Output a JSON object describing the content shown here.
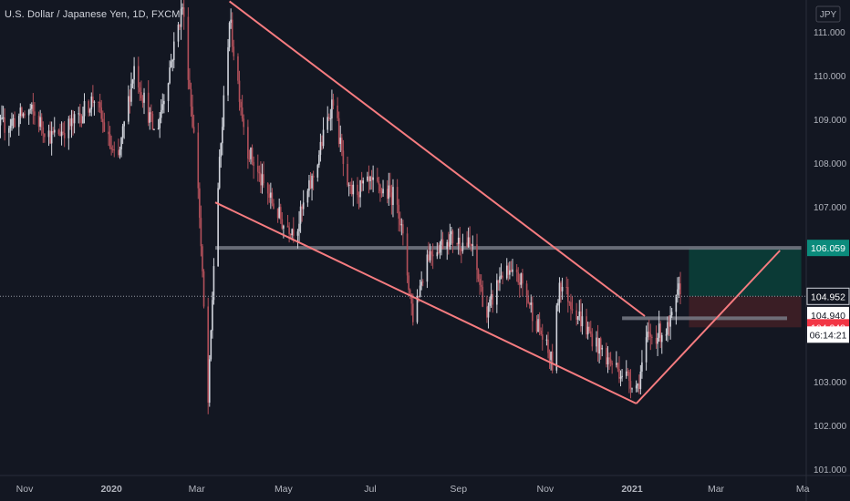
{
  "title": "U.S. Dollar / Japanese Yen, 1D, FXCM",
  "chart_data": {
    "type": "candlestick",
    "symbol": "USDJPY",
    "interval": "1D",
    "source": "FXCM",
    "currency_label": "JPY",
    "y_axis": {
      "ticks": [
        101.0,
        102.0,
        103.0,
        104.0,
        105.0,
        106.0,
        107.0,
        108.0,
        109.0,
        110.0,
        111.0
      ],
      "tick_labels": [
        "101.000",
        "102.000",
        "103.000",
        "104.000",
        "105.000",
        "106.000",
        "107.000",
        "108.000",
        "109.000",
        "110.000",
        "111.000"
      ]
    },
    "x_axis": {
      "tick_labels": [
        "Nov",
        "2020",
        "Mar",
        "May",
        "Jul",
        "Sep",
        "Nov",
        "2021",
        "Mar",
        "Ma"
      ],
      "tick_dates": [
        "2019-11-01",
        "2020-01-01",
        "2020-03-01",
        "2020-05-01",
        "2020-07-01",
        "2020-09-01",
        "2020-11-01",
        "2021-01-01",
        "2021-03-01",
        "2021-05-01"
      ]
    },
    "price_labels": [
      {
        "value": 106.059,
        "label": "106.059",
        "color": "#0b8b7c"
      },
      {
        "value": 104.952,
        "label": "104.952",
        "color": "#131722"
      },
      {
        "value": 104.94,
        "label": "104.940",
        "color": "#ffffff"
      },
      {
        "value": 104.243,
        "label": "104.243",
        "color": "#f23645"
      }
    ],
    "countdown": "06:14:21",
    "candle_anchors": [
      [
        "2019-10-01",
        108.6
      ],
      [
        "2019-10-20",
        108.9
      ],
      [
        "2019-11-05",
        109.2
      ],
      [
        "2019-11-20",
        108.6
      ],
      [
        "2019-12-05",
        108.9
      ],
      [
        "2019-12-20",
        109.5
      ],
      [
        "2020-01-05",
        107.9
      ],
      [
        "2020-01-17",
        110.2
      ],
      [
        "2020-02-01",
        108.6
      ],
      [
        "2020-02-20",
        111.6
      ],
      [
        "2020-03-02",
        107.5
      ],
      [
        "2020-03-09",
        102.5
      ],
      [
        "2020-03-14",
        106.5
      ],
      [
        "2020-03-24",
        111.3
      ],
      [
        "2020-04-05",
        108.4
      ],
      [
        "2020-04-15",
        107.6
      ],
      [
        "2020-05-01",
        106.6
      ],
      [
        "2020-05-10",
        106.5
      ],
      [
        "2020-05-22",
        107.7
      ],
      [
        "2020-06-05",
        109.5
      ],
      [
        "2020-06-15",
        107.3
      ],
      [
        "2020-07-01",
        107.5
      ],
      [
        "2020-07-20",
        107.2
      ],
      [
        "2020-07-31",
        104.5
      ],
      [
        "2020-08-10",
        105.9
      ],
      [
        "2020-08-25",
        106.3
      ],
      [
        "2020-09-10",
        106.1
      ],
      [
        "2020-09-21",
        104.5
      ],
      [
        "2020-10-01",
        105.5
      ],
      [
        "2020-10-15",
        105.3
      ],
      [
        "2020-11-06",
        103.4
      ],
      [
        "2020-11-11",
        105.3
      ],
      [
        "2020-11-30",
        104.2
      ],
      [
        "2020-12-15",
        103.5
      ],
      [
        "2021-01-05",
        102.9
      ],
      [
        "2021-01-12",
        104.0
      ],
      [
        "2021-01-27",
        104.2
      ],
      [
        "2021-02-05",
        105.3
      ]
    ],
    "trendlines": [
      {
        "from": [
          "2020-03-24",
          111.7
        ],
        "to": [
          "2021-01-10",
          104.5
        ],
        "color": "#f77c80"
      },
      {
        "from": [
          "2020-03-14",
          107.1
        ],
        "to": [
          "2021-01-04",
          102.5
        ],
        "color": "#f77c80"
      },
      {
        "from": [
          "2021-01-04",
          102.5
        ],
        "to": [
          "2021-04-15",
          106.0
        ],
        "color": "#f77c80"
      }
    ],
    "horizontal_lines": [
      {
        "from": "2020-03-14",
        "to": "2021-04-30",
        "value": 106.06,
        "color": "#787b86"
      },
      {
        "from": "2020-12-25",
        "to": "2021-04-20",
        "value": 104.45,
        "color": "#787b86"
      }
    ],
    "position_tool": {
      "start": "2021-02-10",
      "end": "2021-04-30",
      "entry": 104.952,
      "target": 106.059,
      "stop": 104.243,
      "profit_color": "#0b3a36",
      "loss_color": "#3a1e25"
    },
    "current_price": 104.952,
    "grid": false
  }
}
